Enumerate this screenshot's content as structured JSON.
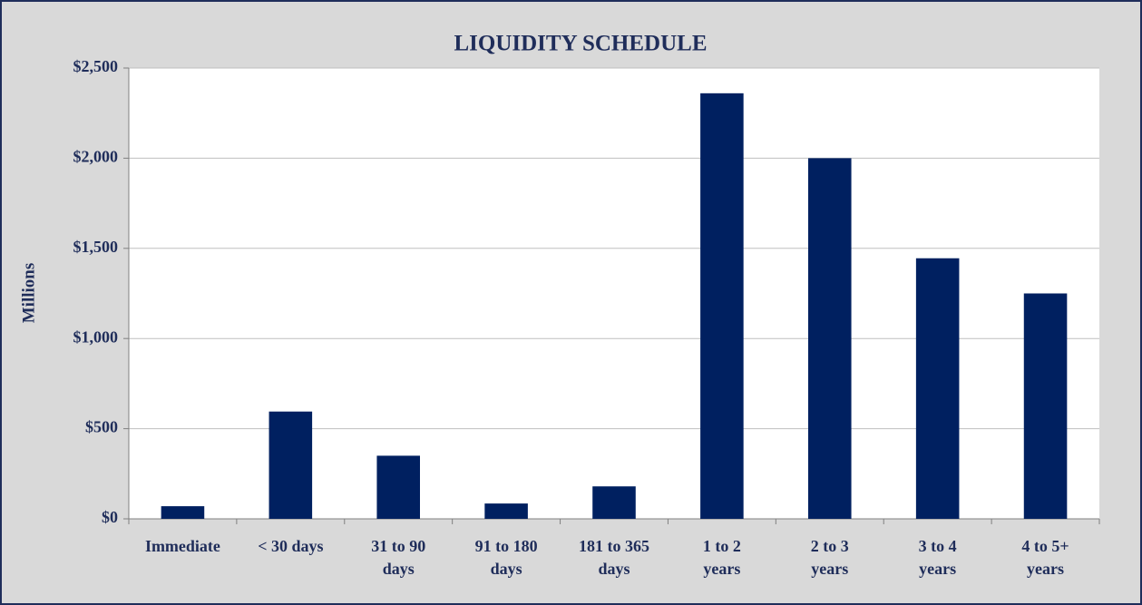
{
  "chart_data": {
    "type": "bar",
    "title": "LIQUIDITY SCHEDULE",
    "y_label": "Millions",
    "categories": [
      "Immediate",
      "< 30 days",
      "31 to 90\ndays",
      "91 to 180\ndays",
      "181 to 365\ndays",
      "1 to 2\nyears",
      "2 to 3\nyears",
      "3 to 4\nyears",
      "4 to 5+\nyears"
    ],
    "values": [
      70,
      595,
      350,
      85,
      180,
      2360,
      2000,
      1445,
      1250
    ],
    "color": "#002060",
    "ylim": [
      0,
      2500
    ],
    "yticks": [
      {
        "value": 0,
        "label": "$0"
      },
      {
        "value": 500,
        "label": "$500"
      },
      {
        "value": 1000,
        "label": "$1,000"
      },
      {
        "value": 1500,
        "label": "$1,500"
      },
      {
        "value": 2000,
        "label": "$2,000"
      },
      {
        "value": 2500,
        "label": "$2,500"
      }
    ],
    "grid": true
  }
}
